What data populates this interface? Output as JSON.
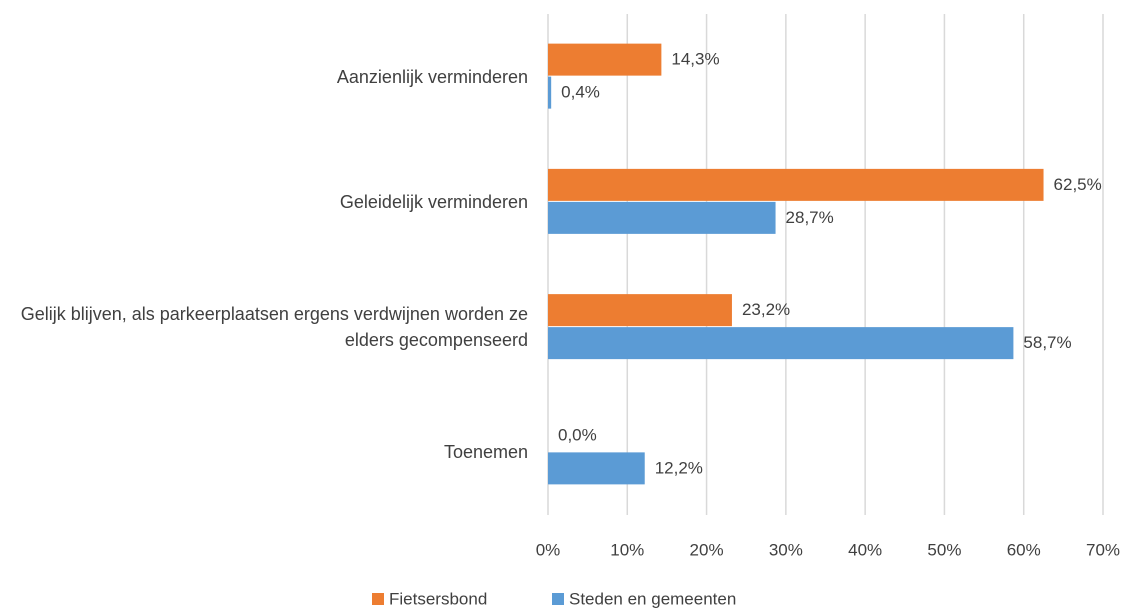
{
  "chart_data": {
    "type": "hbar",
    "categories": [
      "Aanzienlijk verminderen",
      "Geleidelijk verminderen",
      "Gelijk blijven, als parkeerplaatsen ergens verdwijnen worden ze elders gecompenseerd",
      "Toenemen"
    ],
    "series": [
      {
        "name": "Fietsersbond",
        "color": "#ED7D31",
        "values": [
          14.3,
          62.5,
          23.2,
          0.0
        ],
        "value_labels": [
          "14,3%",
          "62,5%",
          "23,2%",
          "0,0%"
        ]
      },
      {
        "name": "Steden en gemeenten",
        "color": "#5B9BD5",
        "values": [
          0.4,
          28.7,
          58.7,
          12.2
        ],
        "value_labels": [
          "0,4%",
          "28,7%",
          "58,7%",
          "12,2%"
        ]
      }
    ],
    "xlim": [
      0,
      70
    ],
    "xticks": [
      {
        "value": 0,
        "label": "0%"
      },
      {
        "value": 10,
        "label": "10%"
      },
      {
        "value": 20,
        "label": "20%"
      },
      {
        "value": 30,
        "label": "30%"
      },
      {
        "value": 40,
        "label": "40%"
      },
      {
        "value": 50,
        "label": "50%"
      },
      {
        "value": 60,
        "label": "60%"
      },
      {
        "value": 70,
        "label": "70%"
      }
    ],
    "grid": true,
    "legend": "bottom"
  }
}
